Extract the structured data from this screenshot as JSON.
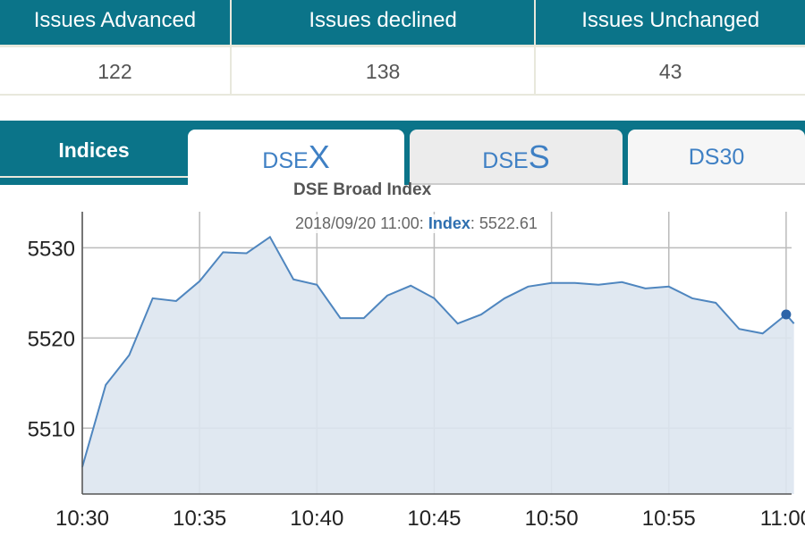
{
  "stats": {
    "headers": [
      "Issues Advanced",
      "Issues declined",
      "Issues Unchanged"
    ],
    "values": [
      "122",
      "138",
      "43"
    ]
  },
  "tabs": {
    "section_label": "Indices",
    "items": [
      {
        "prefix": "DSE",
        "suffix": "X",
        "active": true
      },
      {
        "prefix": "DSE",
        "suffix": "S",
        "active": false
      },
      {
        "prefix": "DS30",
        "suffix": "",
        "active": false
      }
    ]
  },
  "tooltip": {
    "title": "DSE Broad Index",
    "datetime": "2018/09/20 11:00:",
    "key": "Index",
    "value": ": 5522.61"
  },
  "colors": {
    "header": "#0b7489",
    "line": "#4f86bf",
    "fill": "#dde6f0",
    "tab_text": "#3f80c4"
  },
  "chart_data": {
    "type": "area",
    "title": "DSE Broad Index",
    "xlabel": "",
    "ylabel": "",
    "x": [
      "10:30",
      "10:31",
      "10:32",
      "10:33",
      "10:34",
      "10:35",
      "10:36",
      "10:37",
      "10:38",
      "10:39",
      "10:40",
      "10:41",
      "10:42",
      "10:43",
      "10:44",
      "10:45",
      "10:46",
      "10:47",
      "10:48",
      "10:49",
      "10:50",
      "10:51",
      "10:52",
      "10:53",
      "10:54",
      "10:55",
      "10:56",
      "10:57",
      "10:58",
      "10:59",
      "11:00",
      "11:00:20"
    ],
    "values": [
      5505.7,
      5514.8,
      5518.1,
      5524.4,
      5524.1,
      5526.3,
      5529.5,
      5529.4,
      5531.2,
      5526.5,
      5525.9,
      5522.2,
      5522.2,
      5524.7,
      5525.8,
      5524.4,
      5521.6,
      5522.6,
      5524.4,
      5525.7,
      5526.1,
      5526.1,
      5525.9,
      5526.2,
      5525.5,
      5525.7,
      5524.4,
      5523.9,
      5521.0,
      5520.5,
      5522.6,
      5521.6
    ],
    "highlight": {
      "x": "11:00",
      "value": 5522.61
    },
    "xticks": [
      "10:30",
      "10:35",
      "10:40",
      "10:45",
      "10:50",
      "10:55",
      "11:00"
    ],
    "yticks": [
      5510,
      5520,
      5530
    ],
    "ylim": [
      5502.7,
      5534
    ],
    "grid": true
  }
}
